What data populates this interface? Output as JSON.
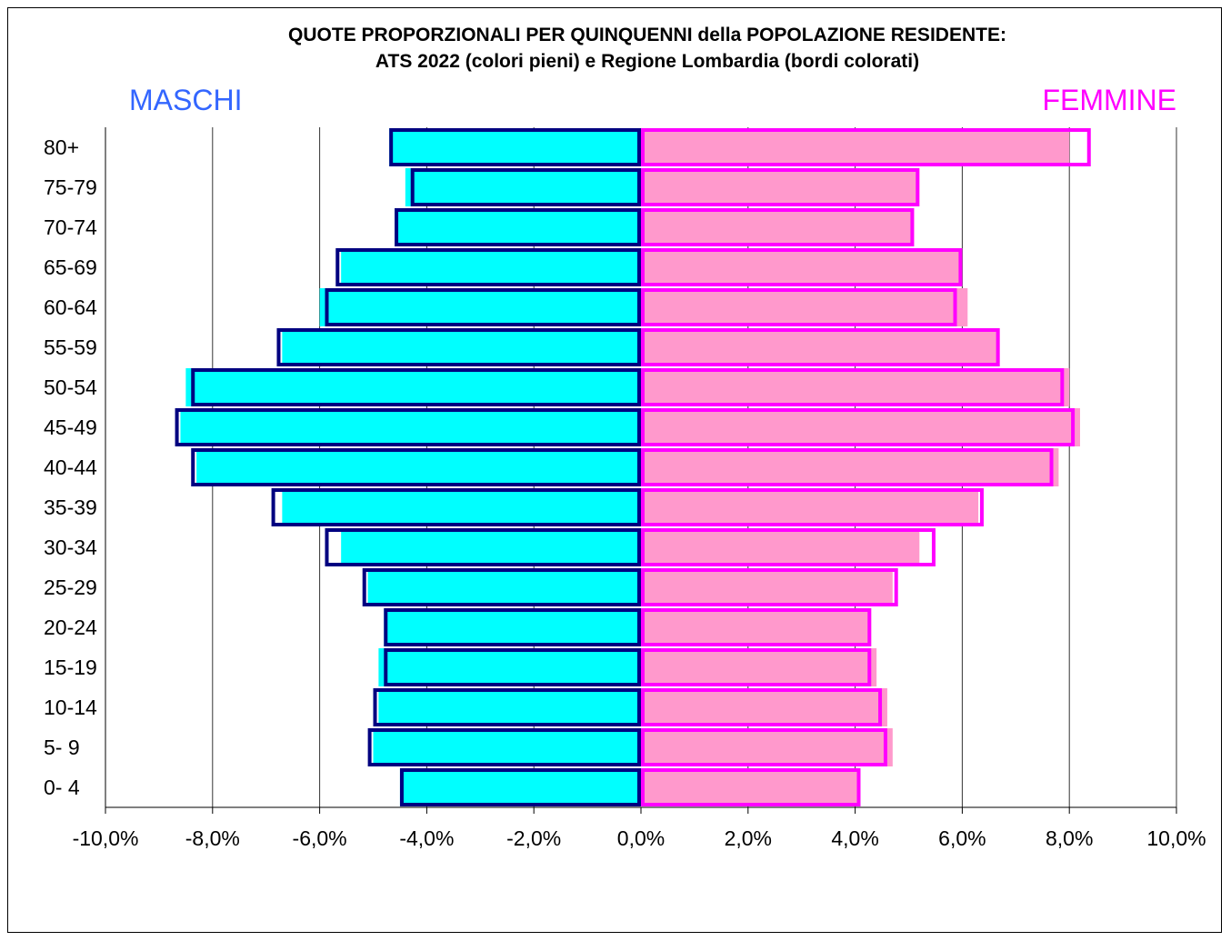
{
  "chart_data": {
    "type": "bar",
    "orientation": "horizontal",
    "title": "QUOTE PROPORZIONALI PER QUINQUENNI della POPOLAZIONE RESIDENTE:",
    "subtitle": "ATS 2022 (colori pieni) e Regione Lombardia (bordi colorati)",
    "left_label": "MASCHI",
    "right_label": "FEMMINE",
    "categories": [
      "80+",
      "75-79",
      "70-74",
      "65-69",
      "60-64",
      "55-59",
      "50-54",
      "45-49",
      "40-44",
      "35-39",
      "30-34",
      "25-29",
      "20-24",
      "15-19",
      "10-14",
      "5- 9",
      "0- 4"
    ],
    "x_tick_labels": [
      "-10,0%",
      "-8,0%",
      "-6,0%",
      "-4,0%",
      "-2,0%",
      "0,0%",
      "2,0%",
      "4,0%",
      "6,0%",
      "8,0%",
      "10,0%"
    ],
    "xlim": [
      -10,
      10
    ],
    "x_ticks": [
      -10,
      -8,
      -6,
      -4,
      -2,
      0,
      2,
      4,
      6,
      8,
      10
    ],
    "grid": true,
    "colors": {
      "male_fill": "#00ffff",
      "male_border": "#000080",
      "female_fill": "#ff99cc",
      "female_border": "#ff00ff",
      "male_label": "#3366ff",
      "female_label": "#ff00ff"
    },
    "series": [
      {
        "values": [
          -4.7,
          -4.4,
          -4.6,
          -5.6,
          -6.0,
          -6.7,
          -8.5,
          -8.6,
          -8.3,
          -6.7,
          -5.6,
          -5.1,
          -4.8,
          -4.9,
          -4.9,
          -5.0,
          -4.5
        ]
      },
      {
        "values": [
          -4.7,
          -4.3,
          -4.6,
          -5.7,
          -5.9,
          -6.8,
          -8.4,
          -8.7,
          -8.4,
          -6.9,
          -5.9,
          -5.2,
          -4.8,
          -4.8,
          -5.0,
          -5.1,
          -4.5
        ]
      },
      {
        "values": [
          8.0,
          5.2,
          5.1,
          6.0,
          6.1,
          6.7,
          8.0,
          8.2,
          7.8,
          6.3,
          5.2,
          4.7,
          4.3,
          4.4,
          4.6,
          4.7,
          4.1
        ]
      },
      {
        "values": [
          8.4,
          5.2,
          5.1,
          6.0,
          5.9,
          6.7,
          7.9,
          8.1,
          7.7,
          6.4,
          5.5,
          4.8,
          4.3,
          4.3,
          4.5,
          4.6,
          4.1
        ]
      }
    ]
  }
}
